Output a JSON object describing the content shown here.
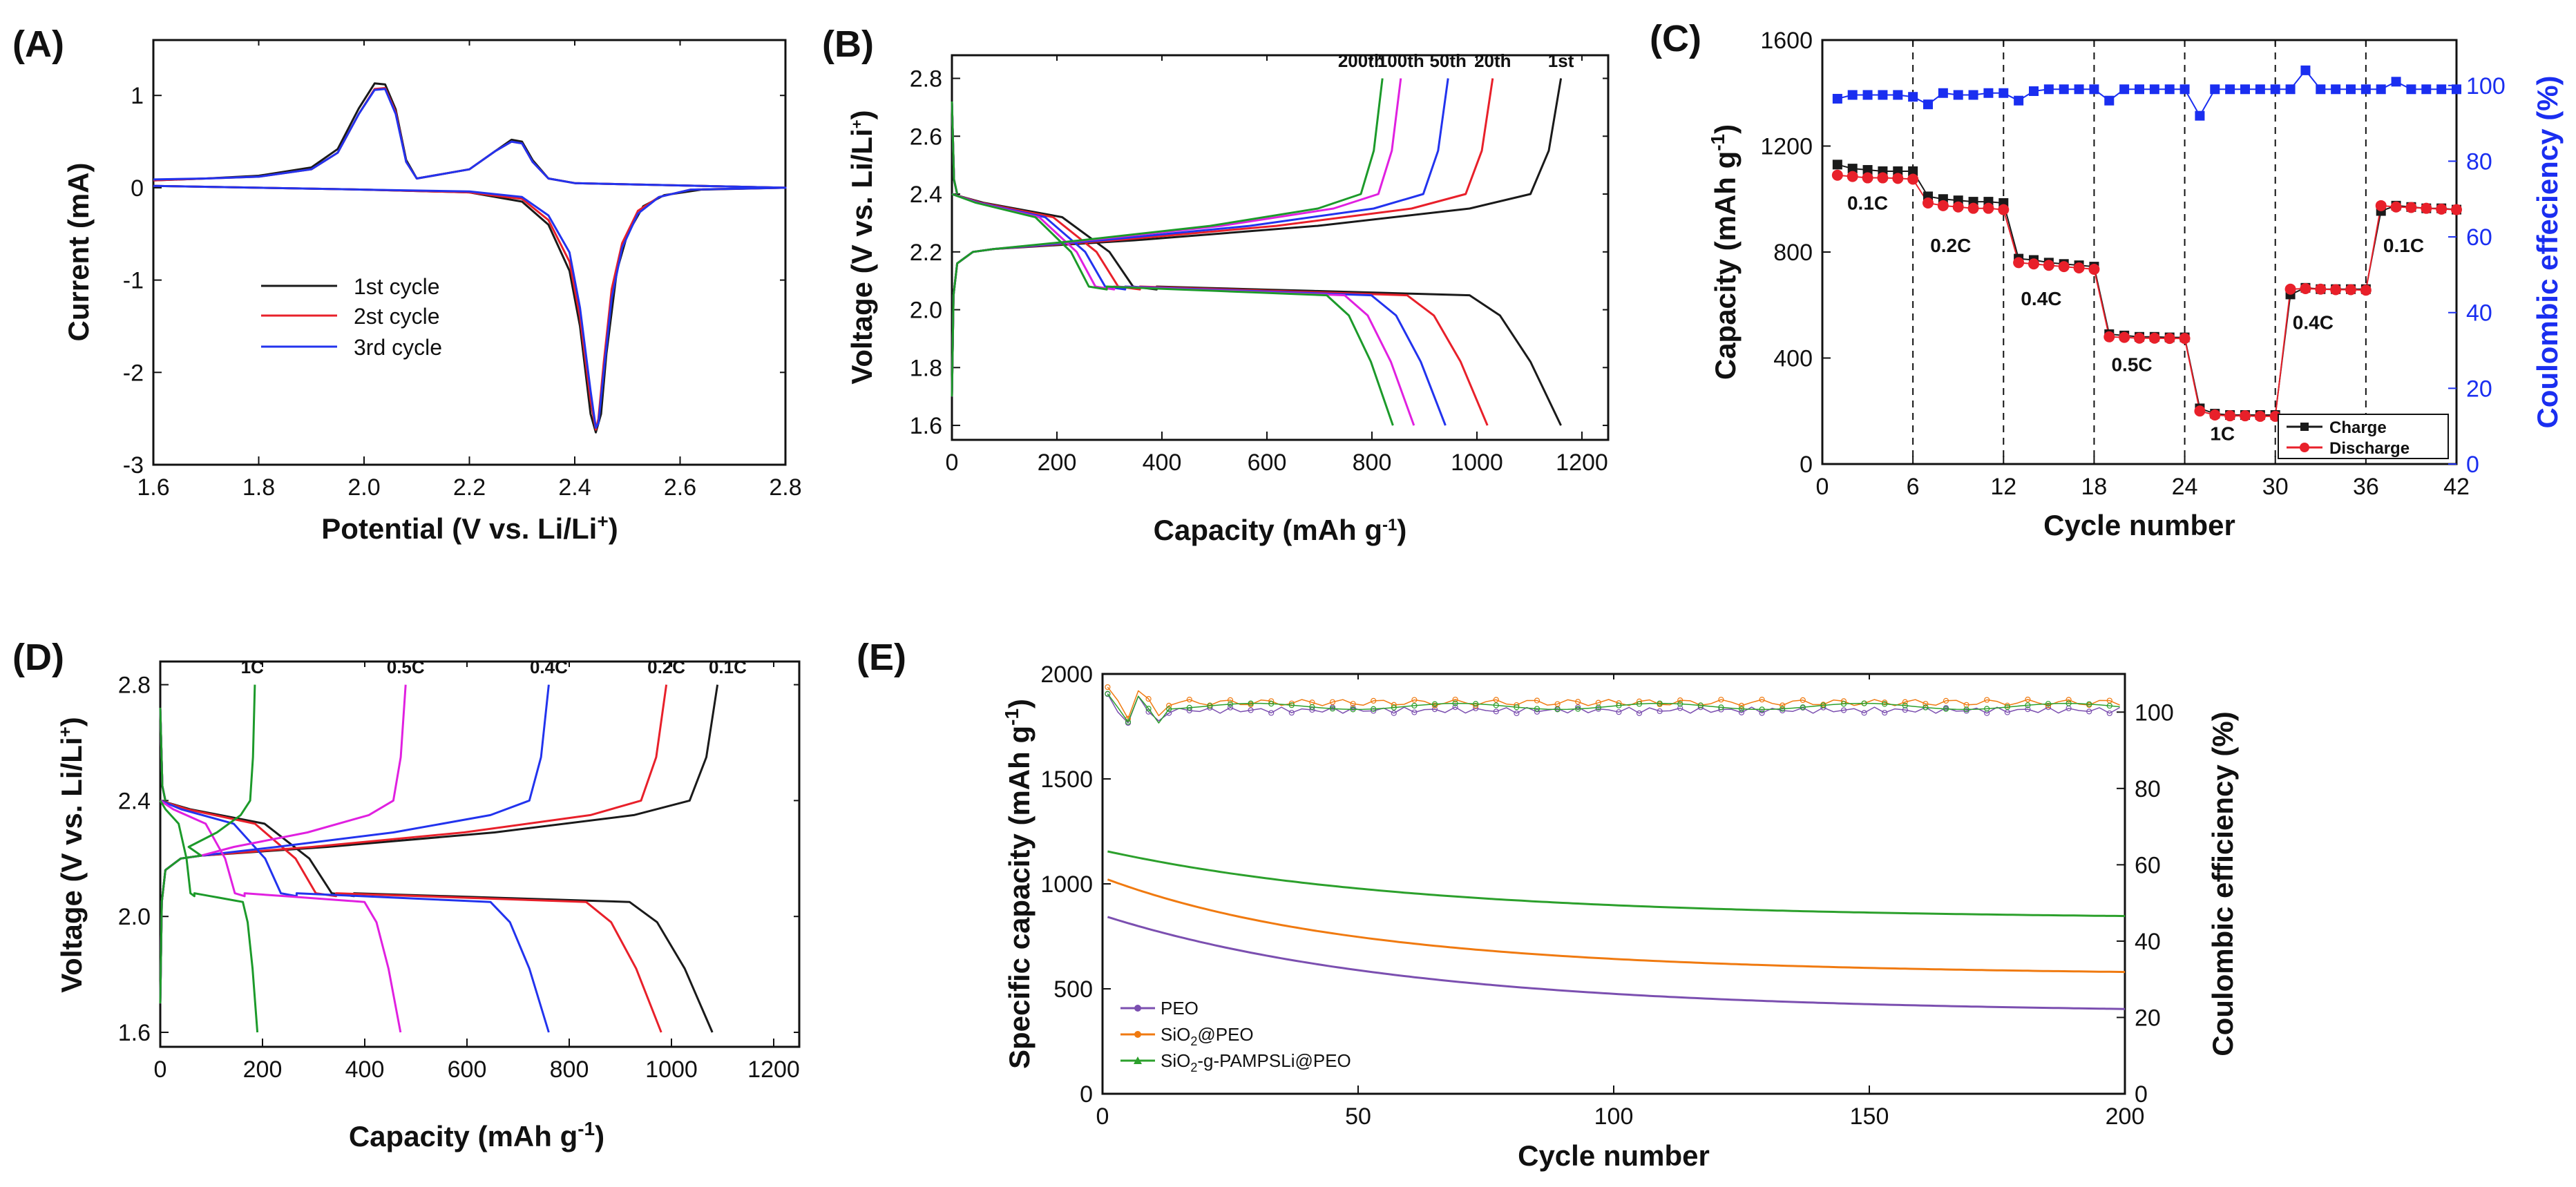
{
  "chart_data": [
    {
      "id": "A",
      "panel": "(A)",
      "type": "line",
      "xlabel_pre": "Potential (V vs. Li/Li",
      "xlabel_sup": "+",
      "xlabel_post": ")",
      "ylabel": "Current (mA)",
      "xlim": [
        1.6,
        2.8
      ],
      "ylim": [
        -3,
        1.6
      ],
      "xticks": [
        1.6,
        1.8,
        2.0,
        2.2,
        2.4,
        2.6,
        2.8
      ],
      "xtick_labels": [
        "1.6",
        "1.8",
        "2.0",
        "2.2",
        "2.4",
        "2.6",
        "2.8"
      ],
      "yticks": [
        -3,
        -2,
        -1,
        0,
        1
      ],
      "ytick_labels": [
        "-3",
        "-2",
        "-1",
        "0",
        "1"
      ],
      "legend": [
        "1st cycle",
        "2st cycle",
        "3rd cycle"
      ],
      "series": [
        {
          "name": "1st cycle",
          "color": "#1a1a1a",
          "x": [
            1.6,
            1.7,
            1.8,
            1.9,
            1.95,
            1.99,
            2.02,
            2.04,
            2.06,
            2.08,
            2.1,
            2.2,
            2.25,
            2.28,
            2.3,
            2.32,
            2.35,
            2.4,
            2.8,
            2.64,
            2.57,
            2.53,
            2.5,
            2.48,
            2.46,
            2.45,
            2.44,
            2.43,
            2.41,
            2.39,
            2.35,
            2.3,
            2.2,
            2.0,
            1.8,
            1.6
          ],
          "y": [
            0.08,
            0.1,
            0.13,
            0.22,
            0.42,
            0.86,
            1.13,
            1.12,
            0.85,
            0.3,
            0.1,
            0.2,
            0.4,
            0.52,
            0.5,
            0.3,
            0.1,
            0.05,
            0.0,
            -0.02,
            -0.08,
            -0.2,
            -0.5,
            -0.9,
            -1.8,
            -2.45,
            -2.65,
            -2.45,
            -1.5,
            -0.9,
            -0.4,
            -0.15,
            -0.05,
            -0.02,
            0.0,
            0.02
          ]
        },
        {
          "name": "2st cycle",
          "color": "#e8202a",
          "x": [
            1.6,
            1.7,
            1.8,
            1.9,
            1.95,
            1.99,
            2.02,
            2.04,
            2.06,
            2.08,
            2.1,
            2.2,
            2.25,
            2.28,
            2.3,
            2.32,
            2.35,
            2.4,
            2.8,
            2.62,
            2.56,
            2.52,
            2.49,
            2.47,
            2.455,
            2.445,
            2.44,
            2.43,
            2.41,
            2.39,
            2.35,
            2.3,
            2.2,
            2.0,
            1.8,
            1.6
          ],
          "y": [
            0.08,
            0.1,
            0.12,
            0.2,
            0.38,
            0.8,
            1.07,
            1.08,
            0.82,
            0.28,
            0.1,
            0.2,
            0.4,
            0.5,
            0.48,
            0.28,
            0.1,
            0.05,
            0.0,
            -0.02,
            -0.1,
            -0.25,
            -0.6,
            -1.1,
            -1.9,
            -2.5,
            -2.62,
            -2.3,
            -1.4,
            -0.8,
            -0.35,
            -0.12,
            -0.05,
            -0.02,
            0.0,
            0.02
          ]
        },
        {
          "name": "3rd cycle",
          "color": "#2233ee",
          "x": [
            1.6,
            1.7,
            1.8,
            1.9,
            1.95,
            1.99,
            2.02,
            2.04,
            2.06,
            2.08,
            2.1,
            2.2,
            2.25,
            2.28,
            2.3,
            2.32,
            2.35,
            2.4,
            2.8,
            2.62,
            2.56,
            2.52,
            2.49,
            2.47,
            2.455,
            2.445,
            2.44,
            2.43,
            2.41,
            2.39,
            2.35,
            2.3,
            2.2,
            2.0,
            1.8,
            1.6
          ],
          "y": [
            0.09,
            0.1,
            0.12,
            0.2,
            0.38,
            0.8,
            1.06,
            1.07,
            0.8,
            0.28,
            0.1,
            0.2,
            0.4,
            0.5,
            0.48,
            0.28,
            0.1,
            0.05,
            0.0,
            -0.02,
            -0.1,
            -0.28,
            -0.65,
            -1.2,
            -2.0,
            -2.55,
            -2.6,
            -2.2,
            -1.3,
            -0.7,
            -0.3,
            -0.1,
            -0.04,
            -0.02,
            0.0,
            0.02
          ]
        }
      ]
    },
    {
      "id": "B",
      "panel": "(B)",
      "type": "line",
      "xlabel_pre": "Capacity (mAh g",
      "xlabel_sup": "-1",
      "xlabel_post": ")",
      "ylabel_pre": "Voltage (V vs. Li/Li",
      "ylabel_sup": "+",
      "ylabel_post": ")",
      "xlim": [
        0,
        1250
      ],
      "ylim": [
        1.55,
        2.88
      ],
      "xticks": [
        0,
        200,
        400,
        600,
        800,
        1000,
        1200
      ],
      "xtick_labels": [
        "0",
        "200",
        "400",
        "600",
        "800",
        "1000",
        "1200"
      ],
      "yticks": [
        1.6,
        1.8,
        2.0,
        2.2,
        2.4,
        2.6,
        2.8
      ],
      "ytick_labels": [
        "1.6",
        "1.8",
        "2.0",
        "2.2",
        "2.4",
        "2.6",
        "2.8"
      ],
      "annotations": [
        {
          "text": "200th",
          "x": 780,
          "y": 2.84
        },
        {
          "text": "100th",
          "x": 855,
          "y": 2.84
        },
        {
          "text": "50th",
          "x": 945,
          "y": 2.84
        },
        {
          "text": "20th",
          "x": 1030,
          "y": 2.84
        },
        {
          "text": "1st",
          "x": 1160,
          "y": 2.84
        }
      ],
      "series": [
        {
          "name": "1st",
          "color": "#1a1a1a",
          "charge_cap": 1160,
          "discharge_cap": 1160
        },
        {
          "name": "20th",
          "color": "#e8202a",
          "charge_cap": 1030,
          "discharge_cap": 1020
        },
        {
          "name": "50th",
          "color": "#2233ee",
          "charge_cap": 945,
          "discharge_cap": 940
        },
        {
          "name": "100th",
          "color": "#e020e0",
          "charge_cap": 855,
          "discharge_cap": 880
        },
        {
          "name": "200th",
          "color": "#1c9a2a",
          "charge_cap": 820,
          "discharge_cap": 840
        }
      ]
    },
    {
      "id": "C",
      "panel": "(C)",
      "type": "scatter",
      "xlabel": "Cycle number",
      "ylabel_pre": "Capacity (mAh g",
      "ylabel_sup": "-1",
      "ylabel_post": ")",
      "ylabel_right": "Coulombic effeciency (%)",
      "xlim": [
        0,
        42
      ],
      "ylim": [
        0,
        1600
      ],
      "ylim_right": [
        0,
        112
      ],
      "xticks": [
        0,
        6,
        12,
        18,
        24,
        30,
        36,
        42
      ],
      "xtick_labels": [
        "0",
        "6",
        "12",
        "18",
        "24",
        "30",
        "36",
        "42"
      ],
      "yticks": [
        0,
        400,
        800,
        1200,
        1600
      ],
      "ytick_labels": [
        "0",
        "400",
        "800",
        "1200",
        "1600"
      ],
      "yticks_right": [
        0,
        20,
        40,
        60,
        80,
        100
      ],
      "ytick_labels_right": [
        "0",
        "20",
        "40",
        "60",
        "80",
        "100"
      ],
      "dividers": [
        6,
        12,
        18,
        24,
        30,
        36
      ],
      "rate_labels": [
        {
          "text": "0.1C",
          "x": 3.0,
          "y": 960
        },
        {
          "text": "0.2C",
          "x": 8.5,
          "y": 800
        },
        {
          "text": "0.4C",
          "x": 14.5,
          "y": 600
        },
        {
          "text": "0.5C",
          "x": 20.5,
          "y": 350
        },
        {
          "text": "1C",
          "x": 26.5,
          "y": 90
        },
        {
          "text": "0.4C",
          "x": 32.5,
          "y": 510
        },
        {
          "text": "0.1C",
          "x": 38.5,
          "y": 800
        }
      ],
      "legend": [
        "Charge",
        "Discharge"
      ],
      "charge": [
        1130,
        1115,
        1110,
        1105,
        1105,
        1105,
        1010,
        1000,
        995,
        990,
        990,
        985,
        775,
        770,
        760,
        755,
        750,
        745,
        490,
        485,
        480,
        480,
        478,
        478,
        210,
        190,
        185,
        185,
        185,
        185,
        640,
        665,
        660,
        660,
        660,
        660,
        955,
        975,
        970,
        965,
        965,
        960
      ],
      "discharge": [
        1090,
        1085,
        1080,
        1080,
        1078,
        1075,
        985,
        975,
        970,
        965,
        965,
        960,
        760,
        755,
        750,
        745,
        740,
        735,
        480,
        478,
        475,
        475,
        474,
        474,
        200,
        185,
        182,
        182,
        180,
        180,
        660,
        662,
        660,
        658,
        658,
        656,
        975,
        970,
        968,
        965,
        962,
        960
      ],
      "efficiency": [
        96.5,
        97.5,
        97.5,
        97.5,
        97.5,
        97,
        95,
        98,
        97.5,
        97.5,
        98,
        98,
        96,
        98.5,
        99,
        99,
        99,
        99,
        96,
        99,
        99,
        99,
        99,
        99,
        92,
        99,
        99,
        99,
        99,
        99,
        99,
        104,
        99,
        99,
        99,
        99,
        99,
        101,
        99,
        99,
        99,
        99
      ],
      "colors": {
        "charge": "#1a1a1a",
        "discharge": "#e8202a",
        "efficiency": "#1a2ef0"
      }
    },
    {
      "id": "D",
      "panel": "(D)",
      "type": "line",
      "xlabel_pre": "Capacity (mAh g",
      "xlabel_sup": "-1",
      "xlabel_post": ")",
      "ylabel_pre": "Voltage (V vs. Li/Li",
      "ylabel_sup": "+",
      "ylabel_post": ")",
      "xlim": [
        0,
        1250
      ],
      "ylim": [
        1.55,
        2.88
      ],
      "xticks": [
        0,
        200,
        400,
        600,
        800,
        1000,
        1200
      ],
      "xtick_labels": [
        "0",
        "200",
        "400",
        "600",
        "800",
        "1000",
        "1200"
      ],
      "yticks": [
        1.6,
        2.0,
        2.4,
        2.8
      ],
      "ytick_labels": [
        "1.6",
        "2.0",
        "2.4",
        "2.8"
      ],
      "annotations": [
        {
          "text": "1C",
          "x": 180,
          "y": 2.84
        },
        {
          "text": "0.5C",
          "x": 480,
          "y": 2.84
        },
        {
          "text": "0.4C",
          "x": 760,
          "y": 2.84
        },
        {
          "text": "0.2C",
          "x": 990,
          "y": 2.84
        },
        {
          "text": "0.1C",
          "x": 1110,
          "y": 2.84
        }
      ],
      "series": [
        {
          "name": "0.1C",
          "color": "#1a1a1a",
          "charge_cap": 1090,
          "discharge_cap": 1080
        },
        {
          "name": "0.2C",
          "color": "#e8202a",
          "charge_cap": 990,
          "discharge_cap": 980
        },
        {
          "name": "0.4C",
          "color": "#2233ee",
          "charge_cap": 760,
          "discharge_cap": 760
        },
        {
          "name": "0.5C",
          "color": "#e020e0",
          "charge_cap": 480,
          "discharge_cap": 470
        },
        {
          "name": "1C",
          "color": "#1c9a2a",
          "charge_cap": 185,
          "discharge_cap": 190
        }
      ]
    },
    {
      "id": "E",
      "panel": "(E)",
      "type": "scatter",
      "xlabel": "Cycle number",
      "ylabel_pre": "Specific capacity (mAh g",
      "ylabel_sup": "-1",
      "ylabel_post": ")",
      "ylabel_right": "Coulombic efficiency (%)",
      "xlim": [
        0,
        200
      ],
      "ylim": [
        0,
        2000
      ],
      "ylim_right": [
        0,
        110
      ],
      "xticks": [
        0,
        50,
        100,
        150,
        200
      ],
      "xtick_labels": [
        "0",
        "50",
        "100",
        "150",
        "200"
      ],
      "yticks": [
        0,
        500,
        1000,
        1500,
        2000
      ],
      "ytick_labels": [
        "0",
        "500",
        "1000",
        "1500",
        "2000"
      ],
      "yticks_right": [
        0,
        20,
        40,
        60,
        80,
        100
      ],
      "ytick_labels_right": [
        "0",
        "20",
        "40",
        "60",
        "80",
        "100"
      ],
      "legend_plain": [
        "PEO"
      ],
      "legend_rich": [
        {
          "pre": "SiO",
          "sub": "2",
          "post": "@PEO"
        },
        {
          "pre": "SiO",
          "sub": "2",
          "post": "-g-PAMPSLi@PEO"
        }
      ],
      "series": [
        {
          "name": "PEO",
          "color": "#7b4fb0",
          "start": 850,
          "end": 400,
          "k": 0.018,
          "knee": 300,
          "ce": 100.5
        },
        {
          "name": "SiO2@PEO",
          "color": "#f07a10",
          "start": 1030,
          "end": 580,
          "k": 0.03,
          "knee": 330,
          "ce": 102.5
        },
        {
          "name": "SiO2-g-PAMPSLi@PEO",
          "color": "#2ca02c",
          "start": 1160,
          "end": 845,
          "k": 0.018,
          "knee": 250,
          "ce": 101.5
        }
      ]
    }
  ]
}
